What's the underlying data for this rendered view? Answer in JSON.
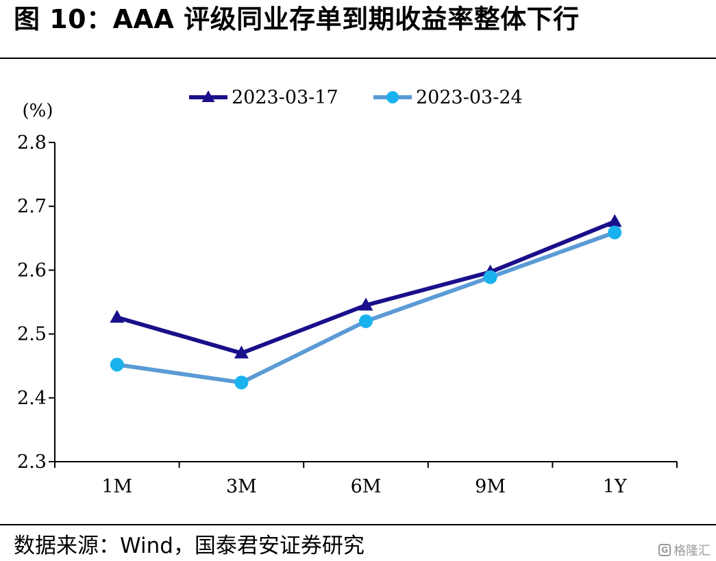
{
  "figure": {
    "title": "图 10：AAA 评级同业存单到期收益率整体下行",
    "source": "数据来源：Wind，国泰君安证券研究",
    "watermark": "格隆汇",
    "watermark_icon": "G"
  },
  "chart_data": {
    "type": "line",
    "categories": [
      "1M",
      "3M",
      "6M",
      "9M",
      "1Y"
    ],
    "ylabel": "(%)",
    "ylim": [
      2.3,
      2.8
    ],
    "yticks": [
      "2.8",
      "2.7",
      "2.6",
      "2.5",
      "2.4",
      "2.3"
    ],
    "grid": false,
    "legend_position": "top",
    "series": [
      {
        "name": "2023-03-17",
        "values": [
          2.526,
          2.47,
          2.545,
          2.597,
          2.676
        ],
        "color": "#1a0f8a",
        "marker": "triangle"
      },
      {
        "name": "2023-03-24",
        "values": [
          2.452,
          2.424,
          2.52,
          2.589,
          2.659
        ],
        "color": "#5b9bd5",
        "marker_color": "#1ab2ee",
        "marker": "circle"
      }
    ]
  }
}
